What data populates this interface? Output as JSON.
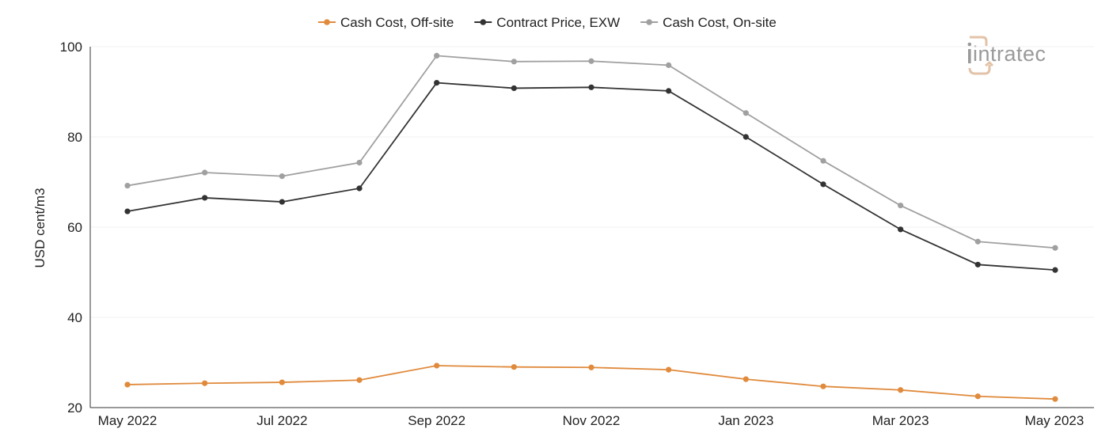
{
  "chart_data": {
    "type": "line",
    "ylabel": "USD cent/m3",
    "xlabel": "",
    "ylim": [
      20,
      100
    ],
    "yticks": [
      20,
      40,
      60,
      80,
      100
    ],
    "ytick_labels": [
      "20",
      "40",
      "60",
      "80",
      "100"
    ],
    "x": [
      "May 2022",
      "Jun 2022",
      "Jul 2022",
      "Aug 2022",
      "Sep 2022",
      "Oct 2022",
      "Nov 2022",
      "Dec 2022",
      "Jan 2023",
      "Feb 2023",
      "Mar 2023",
      "Apr 2023",
      "May 2023"
    ],
    "xtick_labels": [
      "May 2022",
      "Jul 2022",
      "Sep 2022",
      "Nov 2022",
      "Jan 2023",
      "Mar 2023",
      "May 2023"
    ],
    "xtick_indices": [
      0,
      2,
      4,
      6,
      8,
      10,
      12
    ],
    "grid": "horizontal",
    "legend_position": "top-center",
    "series": [
      {
        "name": "Cash Cost, Off-site",
        "color": "#e08a3c",
        "values": [
          25.1,
          25.4,
          25.6,
          26.1,
          29.3,
          29.0,
          28.9,
          28.4,
          26.3,
          24.7,
          23.9,
          22.5,
          21.9
        ]
      },
      {
        "name": "Contract Price, EXW",
        "color": "#333333",
        "values": [
          63.5,
          66.5,
          65.6,
          68.6,
          92.0,
          90.8,
          91.0,
          90.2,
          80.0,
          69.5,
          59.5,
          51.7,
          50.5
        ]
      },
      {
        "name": "Cash Cost, On-site",
        "color": "#a0a0a0",
        "values": [
          69.2,
          72.1,
          71.3,
          74.3,
          98.0,
          96.7,
          96.8,
          95.9,
          85.3,
          74.7,
          64.8,
          56.8,
          55.4
        ]
      }
    ]
  },
  "logo": {
    "text": "intratec",
    "color": "#e2c3a8"
  }
}
